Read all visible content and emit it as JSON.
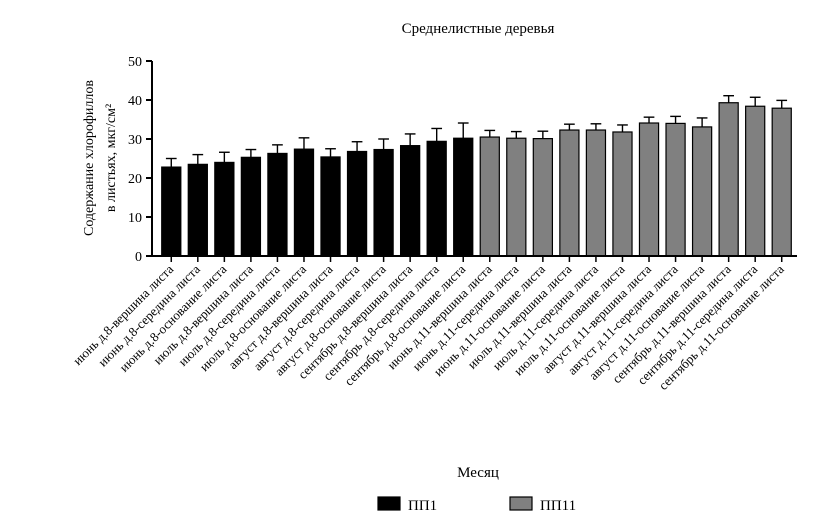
{
  "chart_data": {
    "type": "bar",
    "title": "Среднелистные деревья",
    "xlabel": "Месяц",
    "ylabel_line1": "Содержание хлорофиллов",
    "ylabel_line2": "в листьях, мкг/см²",
    "ylim": [
      0,
      50
    ],
    "yticks": [
      0,
      10,
      20,
      30,
      40,
      50
    ],
    "categories": [
      "июнь д.8-вершина листа",
      "июнь д.8-середина листа",
      "июнь д.8-основание листа",
      "июль д.8-вершина листа",
      "июль д.8-середина листа",
      "июль д.8-основание листа",
      "август д.8-вершина листа",
      "август д.8-середина листа",
      "август д.8-основание листа",
      "сентябрь д.8-вершина листа",
      "сентябрь д.8-середина листа",
      "сентябрь д.8-основание листа",
      "июнь д.11-вершина листа",
      "июнь д.11-середина листа",
      "июнь д.11-основание листа",
      "июль д.11-вершина листа",
      "июль д.11-середина листа",
      "июль д.11-основание листа",
      "август д.11-вершина листа",
      "август д.11-середина листа",
      "август д.11-основание листа",
      "сентябрь д.11-вершина листа",
      "сентябрь д.11-середина листа",
      "сентябрь д.11-основание листа"
    ],
    "values": [
      22.8,
      23.5,
      24.0,
      25.3,
      26.3,
      27.4,
      25.4,
      26.8,
      27.3,
      28.3,
      29.4,
      30.2,
      30.5,
      30.2,
      30.1,
      32.3,
      32.3,
      31.8,
      34.1,
      34.0,
      33.1,
      39.3,
      38.4,
      37.9
    ],
    "errors": [
      2.2,
      2.5,
      2.6,
      2.0,
      2.2,
      2.9,
      2.1,
      2.5,
      2.7,
      3.0,
      3.3,
      3.9,
      1.7,
      1.7,
      1.9,
      1.5,
      1.6,
      1.8,
      1.5,
      1.8,
      2.3,
      1.8,
      2.3,
      2.0
    ],
    "groups": [
      0,
      0,
      0,
      0,
      0,
      0,
      0,
      0,
      0,
      0,
      0,
      0,
      1,
      1,
      1,
      1,
      1,
      1,
      1,
      1,
      1,
      1,
      1,
      1
    ],
    "series": [
      {
        "name": "ПП1",
        "color": "#000000"
      },
      {
        "name": "ПП11",
        "color": "#808080"
      }
    ],
    "legend_position": "bottom"
  }
}
